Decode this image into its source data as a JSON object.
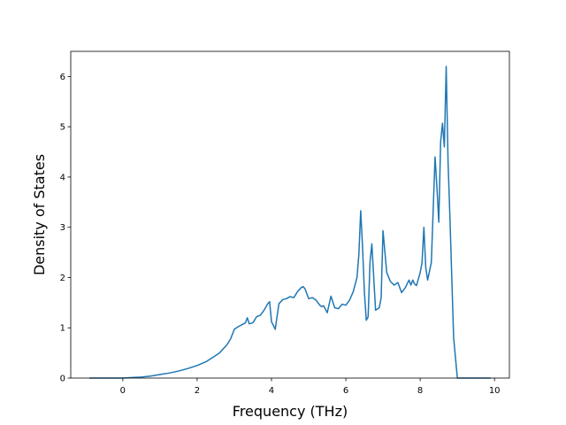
{
  "chart_data": {
    "type": "line",
    "title": "",
    "xlabel": "Frequency (THz)",
    "ylabel": "Density of States",
    "xlim": [
      -1.4,
      10.4
    ],
    "ylim": [
      0,
      6.5
    ],
    "xticks": [
      0,
      2,
      4,
      6,
      8,
      10
    ],
    "yticks": [
      0,
      1,
      2,
      3,
      4,
      5,
      6
    ],
    "grid": false,
    "series": [
      {
        "color": "#1f77b4",
        "x": [
          -0.9,
          -0.5,
          0.0,
          0.25,
          0.5,
          0.75,
          1.0,
          1.25,
          1.5,
          1.75,
          2.0,
          2.25,
          2.5,
          2.6,
          2.7,
          2.8,
          2.9,
          3.0,
          3.1,
          3.2,
          3.3,
          3.35,
          3.4,
          3.5,
          3.6,
          3.7,
          3.8,
          3.9,
          3.95,
          4.0,
          4.05,
          4.1,
          4.2,
          4.3,
          4.4,
          4.5,
          4.6,
          4.7,
          4.8,
          4.85,
          4.9,
          5.0,
          5.1,
          5.2,
          5.3,
          5.35,
          5.4,
          5.5,
          5.6,
          5.7,
          5.8,
          5.9,
          6.0,
          6.1,
          6.2,
          6.3,
          6.35,
          6.4,
          6.45,
          6.5,
          6.55,
          6.6,
          6.65,
          6.7,
          6.8,
          6.9,
          6.95,
          7.0,
          7.1,
          7.2,
          7.3,
          7.4,
          7.5,
          7.6,
          7.7,
          7.75,
          7.8,
          7.85,
          7.9,
          8.0,
          8.05,
          8.1,
          8.15,
          8.2,
          8.3,
          8.4,
          8.45,
          8.5,
          8.55,
          8.6,
          8.65,
          8.7,
          8.75,
          8.8,
          8.9,
          9.0,
          9.05,
          9.1,
          9.5,
          9.9
        ],
        "y": [
          0,
          0,
          0,
          0.01,
          0.02,
          0.04,
          0.07,
          0.1,
          0.14,
          0.19,
          0.25,
          0.33,
          0.45,
          0.5,
          0.58,
          0.66,
          0.78,
          0.97,
          1.02,
          1.06,
          1.1,
          1.2,
          1.08,
          1.1,
          1.22,
          1.25,
          1.35,
          1.48,
          1.52,
          1.12,
          1.05,
          0.97,
          1.48,
          1.56,
          1.58,
          1.62,
          1.6,
          1.72,
          1.8,
          1.82,
          1.78,
          1.58,
          1.6,
          1.55,
          1.45,
          1.42,
          1.44,
          1.3,
          1.63,
          1.4,
          1.38,
          1.47,
          1.45,
          1.55,
          1.72,
          2.0,
          2.45,
          3.33,
          2.6,
          1.7,
          1.15,
          1.22,
          2.3,
          2.67,
          1.35,
          1.4,
          1.6,
          2.93,
          2.1,
          1.92,
          1.85,
          1.9,
          1.7,
          1.8,
          1.95,
          1.85,
          1.95,
          1.87,
          1.84,
          2.1,
          2.3,
          3.0,
          2.2,
          1.95,
          2.3,
          4.4,
          3.8,
          3.1,
          4.7,
          5.07,
          4.6,
          6.2,
          4.3,
          3.2,
          0.8,
          0,
          0,
          0,
          0,
          0
        ]
      }
    ]
  }
}
